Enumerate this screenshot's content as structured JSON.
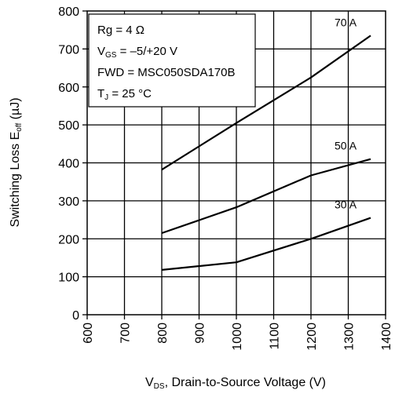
{
  "chart_data": {
    "type": "line",
    "xlabel_main": "V",
    "xlabel_sub": "DS",
    "xlabel_rest": ", Drain-to-Source Voltage (V)",
    "ylabel_main": "Switching Loss E",
    "ylabel_sub": "off",
    "ylabel_rest": " (µJ)",
    "xlim": [
      600,
      1400
    ],
    "ylim": [
      0,
      800
    ],
    "xticks": [
      600,
      700,
      800,
      900,
      1000,
      1100,
      1200,
      1300,
      1400
    ],
    "yticks": [
      0,
      100,
      200,
      300,
      400,
      500,
      600,
      700,
      800
    ],
    "grid": true,
    "series": [
      {
        "name": "70 A",
        "x": [
          800,
          1000,
          1200,
          1360
        ],
        "y": [
          382,
          505,
          625,
          735
        ]
      },
      {
        "name": "50 A",
        "x": [
          800,
          1000,
          1200,
          1360
        ],
        "y": [
          215,
          283,
          367,
          410
        ]
      },
      {
        "name": "30 A",
        "x": [
          800,
          1000,
          1200,
          1360
        ],
        "y": [
          118,
          138,
          200,
          255
        ]
      }
    ],
    "conditions": {
      "rg_main": "Rg = 4 Ω",
      "vgs_main": "V",
      "vgs_sub": "GS",
      "vgs_rest": " = –5/+20 V",
      "fwd": "FWD = MSC050SDA170B",
      "tj_main": "T",
      "tj_sub": "J",
      "tj_rest": " = 25 °C"
    }
  }
}
